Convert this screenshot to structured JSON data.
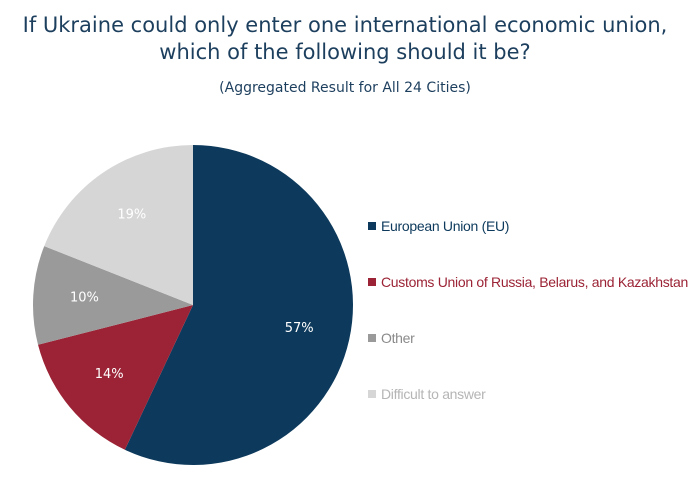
{
  "chart_data": {
    "type": "pie",
    "title_lines": [
      "If Ukraine could only enter one international economic union,",
      "which of the following should it be?"
    ],
    "subtitle": "(Aggregated Result for All 24 Cities)",
    "legend_position": "right",
    "slices": [
      {
        "name": "European Union (EU)",
        "value": 57,
        "label": "57%",
        "color": "#0d3a5c",
        "label_color": "#ffffff",
        "legend_text_color": "#0d3a5c"
      },
      {
        "name": "Customs Union of Russia, Belarus, and Kazakhstan",
        "value": 14,
        "label": "14%",
        "color": "#9b2335",
        "label_color": "#ffffff",
        "legend_text_color": "#9b2335"
      },
      {
        "name": "Other",
        "value": 10,
        "label": "10%",
        "color": "#9a9a9a",
        "label_color": "#ffffff",
        "legend_text_color": "#8a8a8a"
      },
      {
        "name": "Difficult to answer",
        "value": 19,
        "label": "19%",
        "color": "#d6d6d6",
        "label_color": "#ffffff",
        "legend_text_color": "#b5b5b5"
      }
    ]
  }
}
